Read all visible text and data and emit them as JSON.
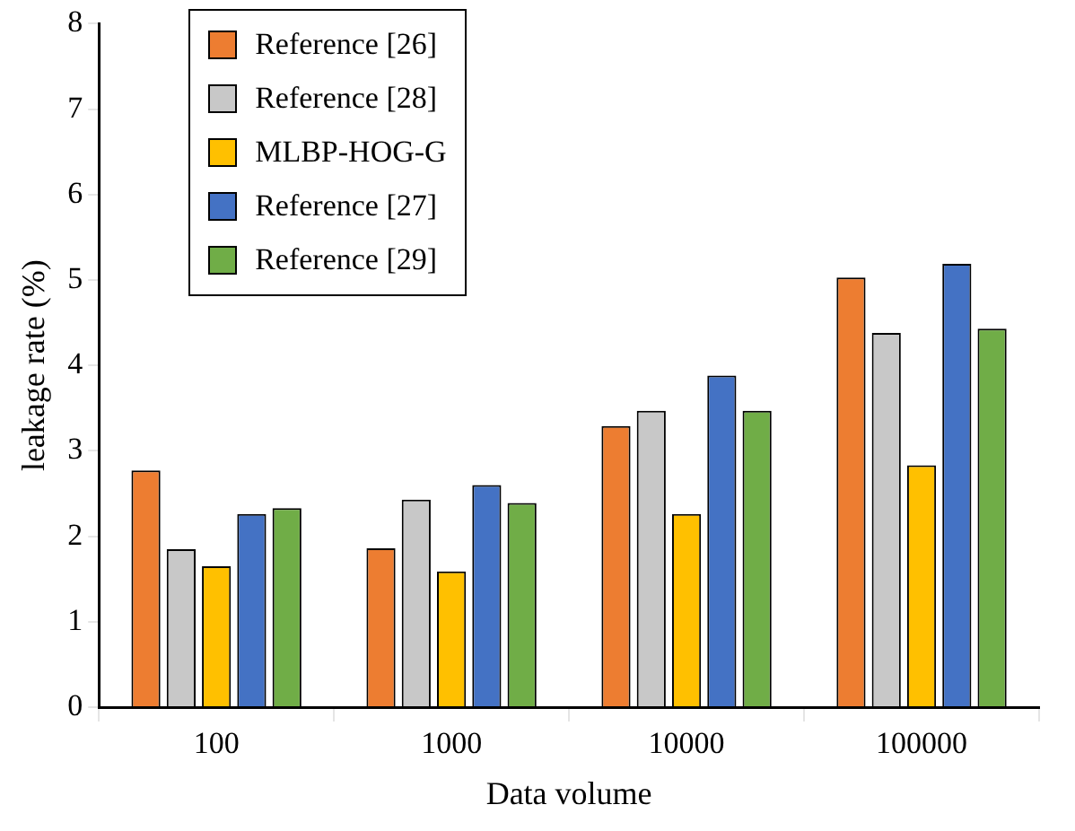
{
  "chart_data": {
    "type": "bar",
    "xlabel": "Data volume",
    "ylabel": "leakage rate (%)",
    "categories": [
      "100",
      "1000",
      "10000",
      "100000"
    ],
    "series": [
      {
        "name": "Reference [26]",
        "color": "#ed7d31",
        "values": [
          2.77,
          1.86,
          3.29,
          5.03
        ]
      },
      {
        "name": "Reference [28]",
        "color": "#c8c8c8",
        "values": [
          1.85,
          2.43,
          3.47,
          4.38
        ]
      },
      {
        "name": "MLBP-HOG-G",
        "color": "#ffc000",
        "values": [
          1.65,
          1.59,
          2.26,
          2.83
        ]
      },
      {
        "name": "Reference [27]",
        "color": "#4472c4",
        "values": [
          2.26,
          2.6,
          3.88,
          5.19
        ]
      },
      {
        "name": "Reference [29]",
        "color": "#70ad47",
        "values": [
          2.33,
          2.39,
          3.47,
          4.43
        ]
      }
    ],
    "ylim": [
      0,
      8
    ],
    "yticks": [
      0,
      1,
      2,
      3,
      4,
      5,
      6,
      7,
      8
    ],
    "grid": false,
    "legend": "top left"
  }
}
